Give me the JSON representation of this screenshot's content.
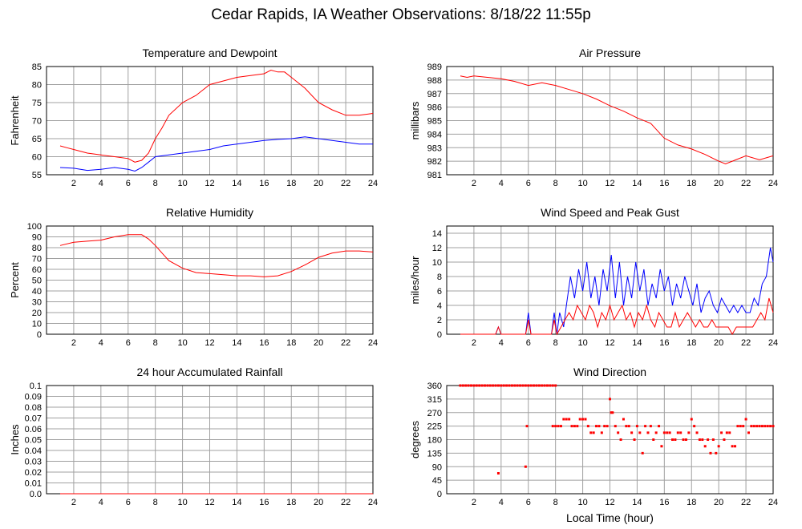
{
  "page": {
    "title": "Cedar Rapids, IA Weather Observations: 8/18/22 11:55p"
  },
  "colors": {
    "red": "#ff0000",
    "blue": "#0000ff",
    "grid": "#a0a0a0",
    "frame": "#000000"
  },
  "chart_data": [
    {
      "id": "temp",
      "type": "line",
      "title": "Temperature and Dewpoint",
      "xlabel": "",
      "ylabel": "Fahrenheit",
      "xlim": [
        0,
        24
      ],
      "ylim": [
        55,
        85
      ],
      "xticks": [
        2,
        4,
        6,
        8,
        10,
        12,
        14,
        16,
        18,
        20,
        22,
        24
      ],
      "yticks": [
        55,
        60,
        65,
        70,
        75,
        80,
        85
      ],
      "yticklabels": [
        "55",
        "60",
        "65",
        "70",
        "75",
        "80",
        "85"
      ],
      "grid": true,
      "series": [
        {
          "color": "#ff0000",
          "x": [
            1.0,
            1.5,
            2.0,
            3.0,
            4.0,
            5.0,
            6.0,
            6.5,
            7.0,
            7.5,
            8.0,
            8.5,
            9.0,
            10.0,
            11.0,
            12.0,
            13.0,
            14.0,
            15.0,
            16.0,
            16.5,
            17.0,
            17.5,
            18.0,
            19.0,
            20.0,
            21.0,
            22.0,
            23.0,
            24.0
          ],
          "y": [
            63.0,
            62.5,
            62.0,
            61.0,
            60.5,
            60.0,
            59.5,
            58.5,
            59.0,
            61.0,
            65.0,
            68.0,
            71.5,
            75.0,
            77.0,
            80.0,
            81.0,
            82.0,
            82.5,
            83.0,
            84.0,
            83.5,
            83.5,
            82.0,
            79.0,
            75.0,
            73.0,
            71.5,
            71.5,
            72.0
          ]
        },
        {
          "color": "#0000ff",
          "x": [
            1.0,
            2.0,
            3.0,
            4.0,
            5.0,
            6.0,
            6.5,
            7.0,
            7.5,
            8.0,
            9.0,
            10.0,
            11.0,
            12.0,
            13.0,
            14.0,
            15.0,
            16.0,
            17.0,
            18.0,
            19.0,
            20.0,
            21.0,
            22.0,
            23.0,
            24.0
          ],
          "y": [
            57.0,
            56.8,
            56.2,
            56.5,
            57.0,
            56.5,
            56.0,
            57.0,
            58.5,
            60.0,
            60.5,
            61.0,
            61.5,
            62.0,
            63.0,
            63.5,
            64.0,
            64.5,
            64.8,
            65.0,
            65.5,
            65.0,
            64.5,
            64.0,
            63.5,
            63.5
          ]
        }
      ]
    },
    {
      "id": "pressure",
      "type": "line",
      "title": "Air Pressure",
      "xlabel": "",
      "ylabel": "millibars",
      "xlim": [
        0,
        24
      ],
      "ylim": [
        981,
        989
      ],
      "xticks": [
        2,
        4,
        6,
        8,
        10,
        12,
        14,
        16,
        18,
        20,
        22,
        24
      ],
      "yticks": [
        981,
        982,
        983,
        984,
        985,
        986,
        987,
        988,
        989
      ],
      "yticklabels": [
        "981",
        "982",
        "983",
        "984",
        "985",
        "986",
        "987",
        "988",
        "989"
      ],
      "grid": true,
      "series": [
        {
          "color": "#ff0000",
          "x": [
            1.0,
            1.5,
            2.0,
            3.0,
            4.0,
            5.0,
            6.0,
            7.0,
            8.0,
            9.0,
            10.0,
            11.0,
            12.0,
            13.0,
            14.0,
            15.0,
            16.0,
            17.0,
            18.0,
            19.0,
            20.0,
            20.5,
            21.0,
            22.0,
            23.0,
            24.0
          ],
          "y": [
            988.3,
            988.2,
            988.3,
            988.2,
            988.1,
            987.9,
            987.6,
            987.8,
            987.6,
            987.3,
            987.0,
            986.6,
            986.1,
            985.7,
            985.2,
            984.8,
            983.7,
            983.2,
            982.9,
            982.5,
            982.0,
            981.8,
            982.0,
            982.4,
            982.1,
            982.4
          ]
        }
      ]
    },
    {
      "id": "humidity",
      "type": "line",
      "title": "Relative Humidity",
      "xlabel": "",
      "ylabel": "Percent",
      "xlim": [
        0,
        24
      ],
      "ylim": [
        0,
        100
      ],
      "xticks": [
        2,
        4,
        6,
        8,
        10,
        12,
        14,
        16,
        18,
        20,
        22,
        24
      ],
      "yticks": [
        0,
        10,
        20,
        30,
        40,
        50,
        60,
        70,
        80,
        90,
        100
      ],
      "yticklabels": [
        "0",
        "10",
        "20",
        "30",
        "40",
        "50",
        "60",
        "70",
        "80",
        "90",
        "100"
      ],
      "grid": true,
      "series": [
        {
          "color": "#ff0000",
          "x": [
            1.0,
            2.0,
            3.0,
            4.0,
            5.0,
            6.0,
            7.0,
            7.5,
            8.0,
            8.5,
            9.0,
            10.0,
            11.0,
            12.0,
            13.0,
            14.0,
            15.0,
            16.0,
            17.0,
            18.0,
            19.0,
            20.0,
            21.0,
            22.0,
            23.0,
            24.0
          ],
          "y": [
            82,
            85,
            86,
            87,
            90,
            92,
            92,
            88,
            82,
            75,
            68,
            61,
            57,
            56,
            55,
            54,
            54,
            53,
            54,
            58,
            64,
            71,
            75,
            77,
            77,
            76
          ]
        }
      ]
    },
    {
      "id": "wind",
      "type": "line",
      "title": "Wind Speed and Peak Gust",
      "xlabel": "",
      "ylabel": "miles/hour",
      "xlim": [
        0,
        24
      ],
      "ylim": [
        0,
        15
      ],
      "xticks": [
        2,
        4,
        6,
        8,
        10,
        12,
        14,
        16,
        18,
        20,
        22,
        24
      ],
      "yticks": [
        0,
        2,
        4,
        6,
        8,
        10,
        12,
        14
      ],
      "yticklabels": [
        "0",
        "2",
        "4",
        "6",
        "8",
        "10",
        "12",
        "14"
      ],
      "grid": true,
      "series": [
        {
          "color": "#0000ff",
          "x": [
            1.0,
            3.6,
            3.8,
            4.0,
            5.8,
            6.0,
            6.2,
            7.7,
            7.9,
            8.1,
            8.3,
            8.6,
            8.8,
            9.1,
            9.4,
            9.7,
            10.0,
            10.3,
            10.6,
            10.9,
            11.2,
            11.5,
            11.8,
            12.1,
            12.4,
            12.7,
            13.0,
            13.3,
            13.6,
            13.9,
            14.2,
            14.5,
            14.8,
            15.1,
            15.4,
            15.7,
            16.0,
            16.3,
            16.6,
            16.9,
            17.2,
            17.5,
            17.8,
            18.1,
            18.4,
            18.7,
            19.0,
            19.3,
            19.6,
            19.9,
            20.2,
            20.5,
            20.8,
            21.1,
            21.4,
            21.7,
            22.0,
            22.3,
            22.6,
            22.9,
            23.2,
            23.5,
            23.8,
            24.0
          ],
          "y": [
            0,
            0,
            1,
            0,
            0,
            3,
            0,
            0,
            3,
            0,
            3,
            1,
            4,
            8,
            5,
            9,
            6,
            10,
            5,
            8,
            4,
            9,
            6,
            11,
            5,
            10,
            4,
            8,
            5,
            10,
            6,
            9,
            4,
            7,
            5,
            9,
            6,
            8,
            4,
            7,
            5,
            8,
            6,
            4,
            7,
            3,
            5,
            6,
            4,
            3,
            5,
            4,
            3,
            4,
            3,
            4,
            3,
            3,
            5,
            4,
            7,
            8,
            12,
            10
          ]
        },
        {
          "color": "#ff0000",
          "x": [
            1.0,
            3.6,
            3.8,
            4.0,
            5.8,
            6.0,
            6.2,
            7.7,
            7.9,
            8.1,
            8.4,
            8.7,
            9.0,
            9.3,
            9.6,
            9.9,
            10.2,
            10.5,
            10.8,
            11.1,
            11.4,
            11.7,
            12.0,
            12.3,
            12.6,
            12.9,
            13.2,
            13.5,
            13.8,
            14.1,
            14.4,
            14.7,
            15.0,
            15.3,
            15.6,
            15.9,
            16.2,
            16.5,
            16.8,
            17.1,
            17.4,
            17.7,
            18.0,
            18.3,
            18.6,
            18.9,
            19.2,
            19.5,
            19.8,
            20.1,
            20.4,
            20.7,
            21.0,
            21.3,
            21.6,
            21.9,
            22.2,
            22.5,
            22.8,
            23.1,
            23.4,
            23.7,
            24.0
          ],
          "y": [
            0,
            0,
            1,
            0,
            0,
            2,
            0,
            0,
            2,
            0,
            1,
            2,
            3,
            2,
            4,
            3,
            2,
            4,
            3,
            1,
            3,
            2,
            4,
            2,
            3,
            4,
            2,
            3,
            1,
            3,
            2,
            4,
            2,
            1,
            3,
            2,
            1,
            1,
            3,
            1,
            2,
            3,
            2,
            1,
            2,
            1,
            1,
            2,
            1,
            1,
            1,
            1,
            0,
            1,
            1,
            1,
            1,
            1,
            2,
            3,
            2,
            5,
            3
          ]
        }
      ]
    },
    {
      "id": "rain",
      "type": "line",
      "title": "24 hour Accumulated Rainfall",
      "xlabel": "",
      "ylabel": "Inches",
      "xlim": [
        0,
        24
      ],
      "ylim": [
        0,
        0.1
      ],
      "xticks": [
        2,
        4,
        6,
        8,
        10,
        12,
        14,
        16,
        18,
        20,
        22,
        24
      ],
      "yticks": [
        0,
        0.01,
        0.02,
        0.03,
        0.04,
        0.05,
        0.06,
        0.07,
        0.08,
        0.09,
        0.1
      ],
      "yticklabels": [
        "0.0",
        "0.01",
        "0.02",
        "0.03",
        "0.04",
        "0.05",
        "0.06",
        "0.07",
        "0.08",
        "0.09",
        "0.1"
      ],
      "grid": true,
      "series": [
        {
          "color": "#ff0000",
          "x": [
            1.0,
            24.0
          ],
          "y": [
            0,
            0
          ]
        }
      ]
    },
    {
      "id": "direction",
      "type": "scatter",
      "title": "Wind Direction",
      "xlabel": "Local Time (hour)",
      "ylabel": "degrees",
      "xlim": [
        0,
        24
      ],
      "ylim": [
        0,
        360
      ],
      "xticks": [
        2,
        4,
        6,
        8,
        10,
        12,
        14,
        16,
        18,
        20,
        22,
        24
      ],
      "yticks": [
        0,
        45,
        90,
        135,
        180,
        225,
        270,
        315,
        360
      ],
      "yticklabels": [
        "0",
        "45",
        "90",
        "135",
        "180",
        "225",
        "270",
        "315",
        "360"
      ],
      "grid": true,
      "series": [
        {
          "color": "#ff0000",
          "x": [
            1.0,
            1.2,
            1.4,
            1.6,
            1.8,
            2.0,
            2.2,
            2.4,
            2.6,
            2.8,
            3.0,
            3.2,
            3.4,
            3.6,
            3.8,
            4.0,
            4.2,
            4.4,
            4.6,
            4.8,
            5.0,
            5.2,
            5.4,
            5.6,
            5.8,
            6.0,
            6.2,
            6.4,
            6.6,
            6.8,
            7.0,
            7.2,
            7.4,
            7.6,
            7.8,
            8.0,
            3.8,
            5.8,
            5.9,
            7.8,
            8.0,
            8.2,
            8.4,
            8.6,
            8.8,
            9.0,
            9.2,
            9.4,
            9.6,
            9.8,
            10.0,
            10.2,
            10.4,
            10.6,
            10.8,
            11.0,
            11.2,
            11.4,
            11.6,
            11.8,
            12.0,
            12.1,
            12.2,
            12.4,
            12.6,
            12.8,
            13.0,
            13.2,
            13.4,
            13.6,
            13.8,
            14.0,
            14.2,
            14.4,
            14.6,
            14.8,
            15.0,
            15.2,
            15.4,
            15.6,
            15.8,
            16.0,
            16.2,
            16.4,
            16.6,
            16.8,
            17.0,
            17.2,
            17.4,
            17.6,
            17.8,
            18.0,
            18.2,
            18.4,
            18.6,
            18.8,
            19.0,
            19.2,
            19.4,
            19.6,
            19.8,
            20.0,
            20.2,
            20.4,
            20.6,
            20.8,
            21.0,
            21.2,
            21.4,
            21.6,
            21.8,
            22.0,
            22.2,
            22.4,
            22.6,
            22.8,
            23.0,
            23.2,
            23.4,
            23.6,
            23.8,
            24.0
          ],
          "y": [
            360,
            360,
            360,
            360,
            360,
            360,
            360,
            360,
            360,
            360,
            360,
            360,
            360,
            360,
            360,
            360,
            360,
            360,
            360,
            360,
            360,
            360,
            360,
            360,
            360,
            360,
            360,
            360,
            360,
            360,
            360,
            360,
            360,
            360,
            360,
            360,
            68,
            90,
            225,
            225,
            225,
            225,
            225,
            248,
            248,
            248,
            225,
            225,
            225,
            248,
            248,
            248,
            225,
            203,
            203,
            225,
            225,
            203,
            225,
            225,
            315,
            270,
            270,
            225,
            203,
            180,
            248,
            225,
            225,
            203,
            180,
            225,
            203,
            135,
            225,
            203,
            225,
            180,
            203,
            225,
            158,
            203,
            203,
            203,
            180,
            180,
            203,
            203,
            180,
            180,
            203,
            248,
            225,
            203,
            180,
            180,
            158,
            180,
            135,
            180,
            135,
            158,
            203,
            180,
            203,
            203,
            158,
            158,
            225,
            225,
            225,
            248,
            203,
            225,
            225,
            225,
            225,
            225,
            225,
            225,
            225,
            225
          ]
        }
      ]
    }
  ]
}
